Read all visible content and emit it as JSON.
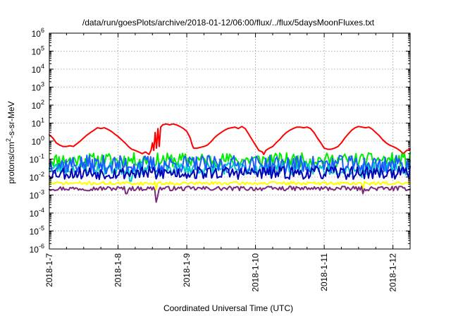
{
  "chart_data": {
    "type": "line",
    "title": "/data/run/goesPlots/archive/2018-01-12/06:00/flux/../flux/5daysMoonFluxes.txt",
    "xlabel": "Coordinated Universal Time (UTC)",
    "ylabel": "protons/cm2-s-sr-MeV",
    "ylabel_parts": {
      "before": "protons/cm",
      "sup": "2",
      "after": "-s-sr-MeV"
    },
    "y_scale": "log",
    "ylim_exp": [
      -6,
      6
    ],
    "y_ticks": [
      {
        "base": "10",
        "exp": "-6"
      },
      {
        "base": "10",
        "exp": "-5"
      },
      {
        "base": "10",
        "exp": "-4"
      },
      {
        "base": "10",
        "exp": "-3"
      },
      {
        "base": "10",
        "exp": "-2"
      },
      {
        "base": "10",
        "exp": "-1"
      },
      {
        "base": "10",
        "exp": "0"
      },
      {
        "base": "10",
        "exp": "1"
      },
      {
        "base": "10",
        "exp": "2"
      },
      {
        "base": "10",
        "exp": "3"
      },
      {
        "base": "10",
        "exp": "4"
      },
      {
        "base": "10",
        "exp": "5"
      },
      {
        "base": "10",
        "exp": "6"
      }
    ],
    "x_ticks": [
      {
        "label": "2018-1-7",
        "day": 0
      },
      {
        "label": "2018-1-8",
        "day": 1
      },
      {
        "label": "2018-1-9",
        "day": 2
      },
      {
        "label": "2018-1-10",
        "day": 3
      },
      {
        "label": "2018-1-11",
        "day": 4
      },
      {
        "label": "2018-1-12",
        "day": 5
      }
    ],
    "xlim_days": [
      0,
      5.25
    ],
    "grid": true,
    "series": [
      {
        "color": "#ff0000",
        "points": [
          [
            0.0,
            2.2
          ],
          [
            0.05,
            1.5
          ],
          [
            0.1,
            0.8
          ],
          [
            0.15,
            0.6
          ],
          [
            0.2,
            0.5
          ],
          [
            0.25,
            0.5
          ],
          [
            0.3,
            0.55
          ],
          [
            0.35,
            0.5
          ],
          [
            0.4,
            0.7
          ],
          [
            0.45,
            1.0
          ],
          [
            0.5,
            1.5
          ],
          [
            0.55,
            2.2
          ],
          [
            0.6,
            3.0
          ],
          [
            0.65,
            4.0
          ],
          [
            0.7,
            5.5
          ],
          [
            0.75,
            5.0
          ],
          [
            0.8,
            5.5
          ],
          [
            0.85,
            4.5
          ],
          [
            0.9,
            3.5
          ],
          [
            0.95,
            2.5
          ],
          [
            1.0,
            1.8
          ],
          [
            1.05,
            1.2
          ],
          [
            1.1,
            0.8
          ],
          [
            1.15,
            0.5
          ],
          [
            1.2,
            0.35
          ],
          [
            1.25,
            0.3
          ],
          [
            1.3,
            0.25
          ],
          [
            1.35,
            0.2
          ],
          [
            1.4,
            0.25
          ],
          [
            1.45,
            0.18
          ],
          [
            1.48,
            0.3
          ],
          [
            1.5,
            0.8
          ],
          [
            1.52,
            0.3
          ],
          [
            1.54,
            3.0
          ],
          [
            1.56,
            0.4
          ],
          [
            1.58,
            5.0
          ],
          [
            1.6,
            0.5
          ],
          [
            1.62,
            6.0
          ],
          [
            1.65,
            8.0
          ],
          [
            1.7,
            9.0
          ],
          [
            1.75,
            8.0
          ],
          [
            1.8,
            9.0
          ],
          [
            1.85,
            8.0
          ],
          [
            1.9,
            6.5
          ],
          [
            1.95,
            5.0
          ],
          [
            2.0,
            3.5
          ],
          [
            2.05,
            1.5
          ],
          [
            2.08,
            0.6
          ],
          [
            2.1,
            0.4
          ],
          [
            2.15,
            0.4
          ],
          [
            2.2,
            0.45
          ],
          [
            2.25,
            0.5
          ],
          [
            2.3,
            0.6
          ],
          [
            2.35,
            0.9
          ],
          [
            2.4,
            1.5
          ],
          [
            2.45,
            2.2
          ],
          [
            2.5,
            3.0
          ],
          [
            2.55,
            4.0
          ],
          [
            2.6,
            5.0
          ],
          [
            2.65,
            5.5
          ],
          [
            2.7,
            6.0
          ],
          [
            2.75,
            5.0
          ],
          [
            2.8,
            6.5
          ],
          [
            2.85,
            5.0
          ],
          [
            2.9,
            2.5
          ],
          [
            2.95,
            1.2
          ],
          [
            3.0,
            0.6
          ],
          [
            3.05,
            0.3
          ],
          [
            3.1,
            0.25
          ],
          [
            3.12,
            0.18
          ],
          [
            3.15,
            0.3
          ],
          [
            3.2,
            0.4
          ],
          [
            3.25,
            0.5
          ],
          [
            3.3,
            0.8
          ],
          [
            3.35,
            1.2
          ],
          [
            3.4,
            2.0
          ],
          [
            3.45,
            3.0
          ],
          [
            3.5,
            4.0
          ],
          [
            3.55,
            5.0
          ],
          [
            3.6,
            6.0
          ],
          [
            3.65,
            6.0
          ],
          [
            3.7,
            5.5
          ],
          [
            3.75,
            6.0
          ],
          [
            3.8,
            5.0
          ],
          [
            3.85,
            3.0
          ],
          [
            3.9,
            1.5
          ],
          [
            3.95,
            0.8
          ],
          [
            4.0,
            0.4
          ],
          [
            4.05,
            0.35
          ],
          [
            4.1,
            0.35
          ],
          [
            4.15,
            0.4
          ],
          [
            4.2,
            0.5
          ],
          [
            4.25,
            0.8
          ],
          [
            4.3,
            1.5
          ],
          [
            4.35,
            2.5
          ],
          [
            4.4,
            4.0
          ],
          [
            4.45,
            5.5
          ],
          [
            4.5,
            6.5
          ],
          [
            4.55,
            6.0
          ],
          [
            4.6,
            5.5
          ],
          [
            4.65,
            6.0
          ],
          [
            4.7,
            4.5
          ],
          [
            4.75,
            3.0
          ],
          [
            4.8,
            2.0
          ],
          [
            4.85,
            1.2
          ],
          [
            4.9,
            0.8
          ],
          [
            4.95,
            0.6
          ],
          [
            5.0,
            0.5
          ],
          [
            5.05,
            0.4
          ],
          [
            5.1,
            0.3
          ],
          [
            5.15,
            0.2
          ],
          [
            5.2,
            0.3
          ],
          [
            5.25,
            0.35
          ]
        ]
      },
      {
        "color": "#00ee00",
        "base": 0.09,
        "amp": 0.13,
        "seed": 11,
        "dips": [
          [
            1.55,
            0.05
          ]
        ]
      },
      {
        "color": "#00c8c8",
        "base": 0.03,
        "amp": 0.12,
        "seed": 23,
        "dips": [
          [
            1.18,
            0.006
          ],
          [
            1.55,
            0.008
          ],
          [
            4.55,
            0.01
          ]
        ]
      },
      {
        "color": "#1a5cff",
        "base": 0.05,
        "amp": 0.17,
        "seed": 37,
        "dips": [
          [
            1.55,
            0.02
          ]
        ]
      },
      {
        "color": "#0000b4",
        "base": 0.017,
        "amp": 0.12,
        "seed": 53,
        "dips": [
          [
            1.55,
            0.008
          ]
        ]
      },
      {
        "color": "#ffff00",
        "base": 0.0045,
        "amp": 0.03,
        "seed": 71,
        "dips": [
          [
            1.55,
            0.002
          ],
          [
            4.56,
            0.002
          ]
        ]
      },
      {
        "color": "#7a2a7a",
        "base": 0.0023,
        "amp": 0.04,
        "seed": 97,
        "dips": [
          [
            1.12,
            0.0012
          ],
          [
            1.55,
            0.0004
          ],
          [
            1.57,
            0.0008
          ],
          [
            4.56,
            0.0012
          ]
        ]
      }
    ]
  }
}
